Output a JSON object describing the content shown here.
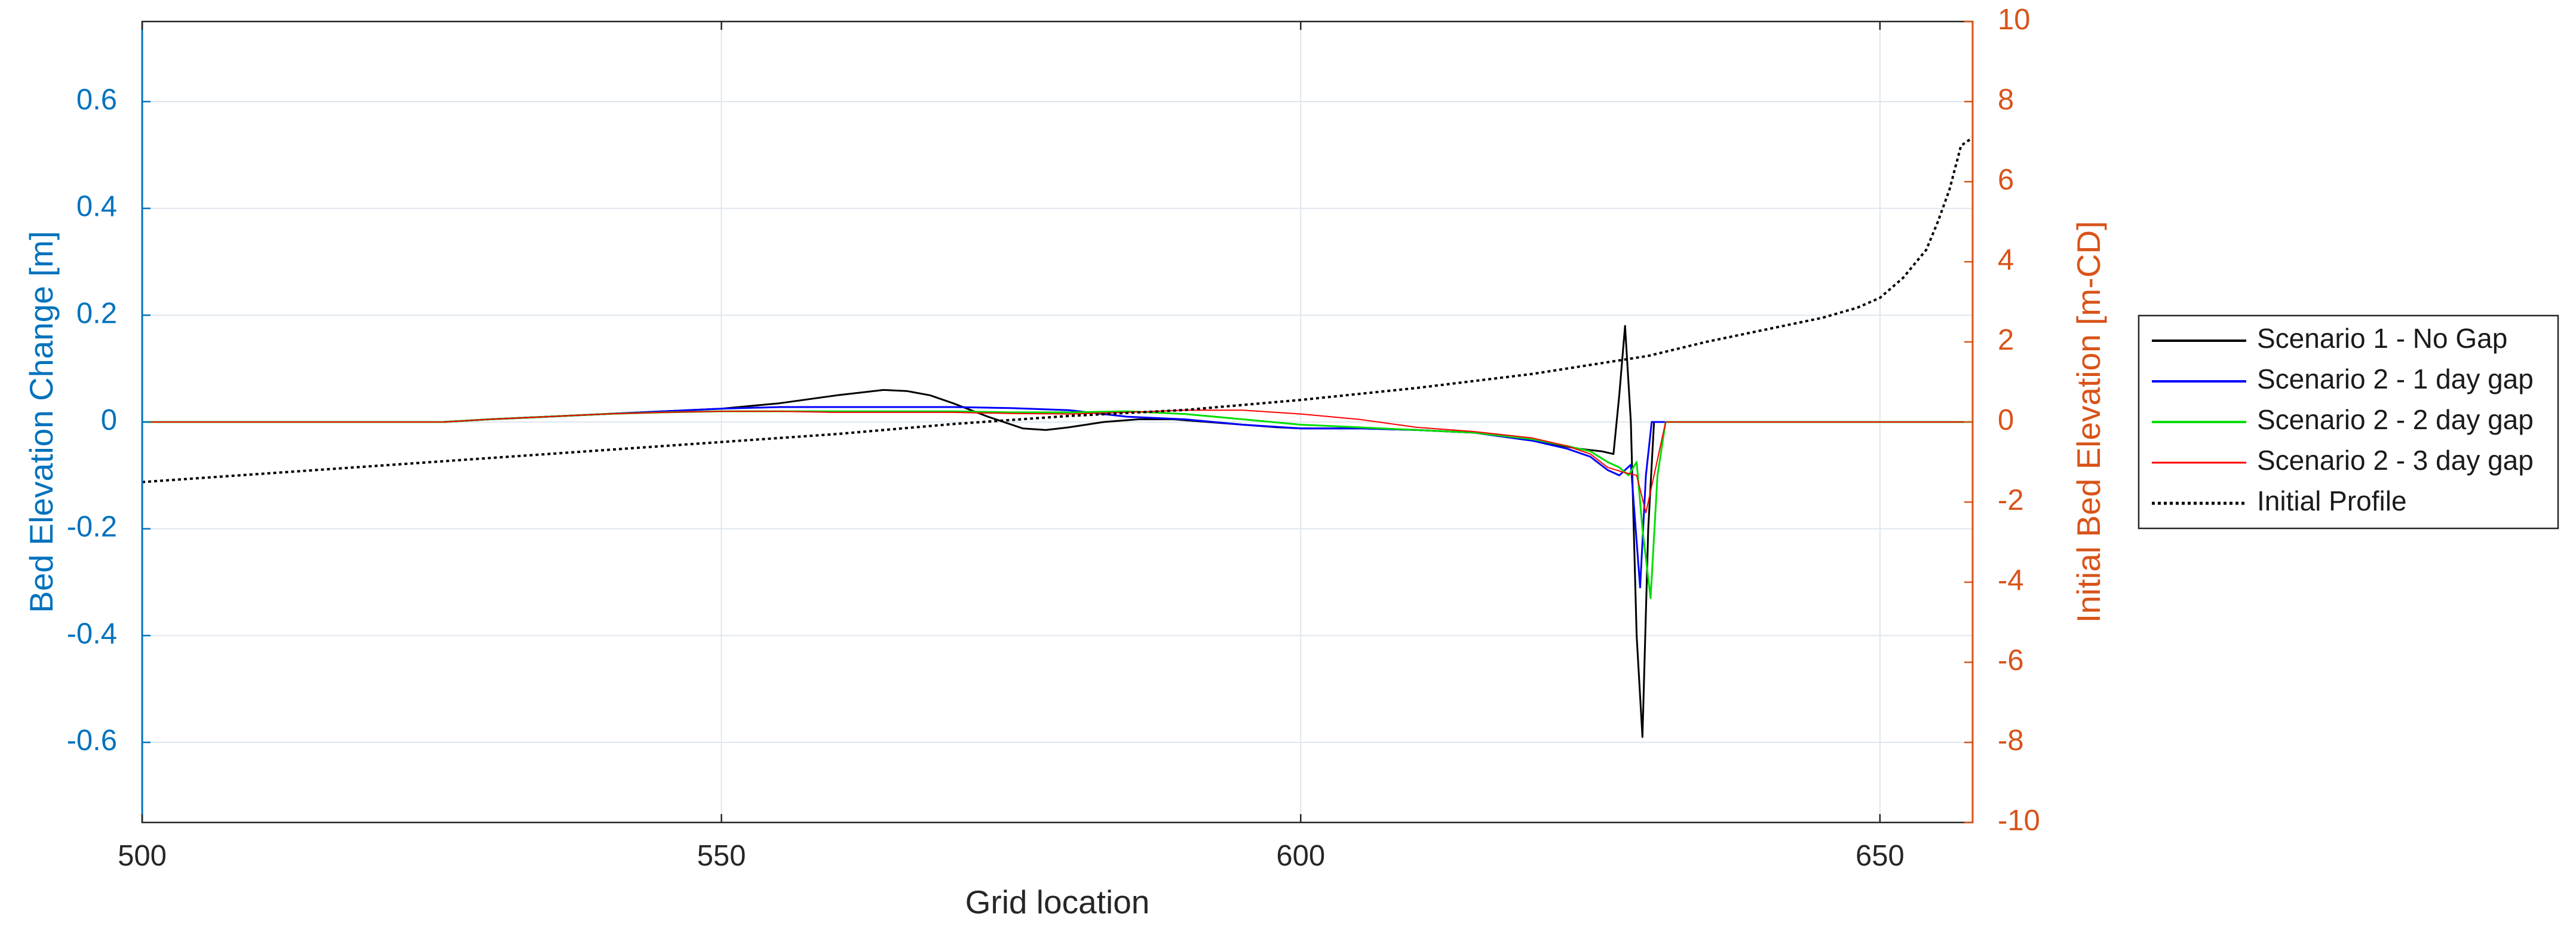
{
  "chart_data": {
    "type": "line",
    "xlabel": "Grid location",
    "ylabel_left": "Bed Elevation Change [m]",
    "ylabel_right": "Initial Bed Elevation [m-CD]",
    "xlim": [
      500,
      658
    ],
    "ylim_left": [
      -0.75,
      0.75
    ],
    "ylim_right": [
      -10,
      10
    ],
    "x_ticks": [
      "500",
      "550",
      "600",
      "650"
    ],
    "y_left_ticks": [
      "0.6",
      "0.4",
      "0.2",
      "0",
      "-0.2",
      "-0.4",
      "-0.6"
    ],
    "y_right_ticks": [
      "10",
      "8",
      "6",
      "4",
      "2",
      "0",
      "-2",
      "-4",
      "-6",
      "-8",
      "-10"
    ],
    "grid": true,
    "legend_position": "outside-right",
    "colors": {
      "left_axis": "#0072BD",
      "right_axis": "#D95319",
      "grid": "#dfe6ee",
      "frame": "#262626"
    },
    "series": [
      {
        "name": "Scenario 1 - No Gap",
        "axis": "left",
        "color": "#000000",
        "dash": "solid",
        "width": 3,
        "x": [
          500,
          526,
          530,
          535,
          540,
          545,
          550,
          555,
          560,
          564,
          566,
          568,
          570,
          573,
          576,
          578,
          580,
          583,
          586,
          589,
          592,
          595,
          598,
          600,
          605,
          610,
          615,
          620,
          624,
          626,
          627,
          627.5,
          628,
          628.5,
          629,
          629.5,
          630,
          630.5,
          631,
          640,
          658
        ],
        "y": [
          0,
          0,
          0.005,
          0.01,
          0.015,
          0.02,
          0.025,
          0.035,
          0.05,
          0.06,
          0.058,
          0.05,
          0.035,
          0.01,
          -0.012,
          -0.015,
          -0.01,
          0.0,
          0.005,
          0.005,
          0.0,
          -0.005,
          -0.01,
          -0.012,
          -0.012,
          -0.015,
          -0.02,
          -0.035,
          -0.05,
          -0.055,
          -0.06,
          0.05,
          0.18,
          0.0,
          -0.4,
          -0.59,
          -0.2,
          0.0,
          0.0,
          0.0,
          0.0
        ]
      },
      {
        "name": "Scenario 2 - 1 day gap",
        "axis": "left",
        "color": "#0000FF",
        "dash": "solid",
        "width": 3,
        "x": [
          500,
          526,
          530,
          535,
          540,
          545,
          550,
          555,
          560,
          565,
          570,
          575,
          580,
          585,
          590,
          595,
          600,
          605,
          610,
          615,
          620,
          623,
          625,
          626.5,
          627.5,
          628.5,
          629.3,
          629.8,
          630.3,
          631,
          640,
          658
        ],
        "y": [
          0,
          0,
          0.005,
          0.01,
          0.015,
          0.02,
          0.025,
          0.028,
          0.028,
          0.028,
          0.028,
          0.026,
          0.022,
          0.01,
          0.005,
          -0.005,
          -0.012,
          -0.012,
          -0.015,
          -0.02,
          -0.035,
          -0.05,
          -0.065,
          -0.09,
          -0.1,
          -0.08,
          -0.31,
          -0.1,
          0.0,
          0.0,
          0.0,
          0.0
        ]
      },
      {
        "name": "Scenario 2 - 2 day gap",
        "axis": "left",
        "color": "#00DD00",
        "dash": "solid",
        "width": 3,
        "x": [
          500,
          526,
          530,
          535,
          540,
          545,
          550,
          555,
          560,
          565,
          570,
          575,
          580,
          585,
          590,
          595,
          600,
          605,
          610,
          615,
          620,
          623,
          625,
          626.5,
          627.5,
          628.3,
          629,
          629.5,
          630.2,
          630.8,
          631.5,
          640,
          658
        ],
        "y": [
          0,
          0,
          0.005,
          0.01,
          0.015,
          0.018,
          0.02,
          0.02,
          0.02,
          0.02,
          0.02,
          0.018,
          0.018,
          0.02,
          0.015,
          0.005,
          -0.005,
          -0.01,
          -0.015,
          -0.02,
          -0.032,
          -0.045,
          -0.055,
          -0.075,
          -0.085,
          -0.1,
          -0.075,
          -0.2,
          -0.33,
          -0.1,
          0.0,
          0.0,
          0.0
        ]
      },
      {
        "name": "Scenario 2 - 3 day gap",
        "axis": "left",
        "color": "#FF0000",
        "dash": "solid",
        "width": 2,
        "x": [
          500,
          526,
          530,
          535,
          540,
          545,
          550,
          555,
          560,
          565,
          570,
          575,
          580,
          585,
          590,
          595,
          600,
          605,
          610,
          615,
          620,
          623,
          625,
          626.5,
          628,
          629,
          629.8,
          630.5,
          631.5,
          640,
          658
        ],
        "y": [
          0,
          0,
          0.005,
          0.01,
          0.015,
          0.018,
          0.02,
          0.02,
          0.018,
          0.018,
          0.018,
          0.016,
          0.015,
          0.018,
          0.022,
          0.022,
          0.015,
          0.005,
          -0.01,
          -0.018,
          -0.03,
          -0.045,
          -0.06,
          -0.085,
          -0.095,
          -0.1,
          -0.17,
          -0.1,
          0.0,
          0.0,
          0.0
        ]
      },
      {
        "name": "Initial Profile",
        "axis": "right",
        "color": "#000000",
        "dash": "dotted",
        "width": 4,
        "x": [
          500,
          510,
          520,
          530,
          540,
          550,
          560,
          570,
          580,
          590,
          600,
          610,
          620,
          630,
          635,
          640,
          645,
          648,
          650,
          652,
          654,
          655,
          656,
          657,
          658
        ],
        "y": [
          -1.5,
          -1.3,
          -1.1,
          -0.9,
          -0.7,
          -0.5,
          -0.3,
          -0.05,
          0.15,
          0.3,
          0.55,
          0.85,
          1.2,
          1.65,
          2.0,
          2.3,
          2.6,
          2.85,
          3.1,
          3.6,
          4.3,
          5.0,
          5.8,
          6.9,
          7.1
        ]
      }
    ]
  }
}
